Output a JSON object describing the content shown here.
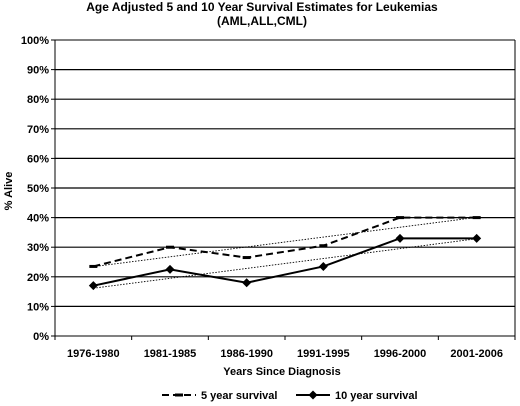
{
  "chart_data": {
    "type": "line",
    "title": "Age Adjusted 5 and 10 Year Survival Estimates  for Leukemias",
    "subtitle": "(AML,ALL,CML)",
    "xlabel": "Years Since Diagnosis",
    "ylabel": "% Alive",
    "categories": [
      "1976-1980",
      "1981-1985",
      "1986-1990",
      "1991-1995",
      "1996-2000",
      "2001-2006"
    ],
    "ylim": [
      0,
      100
    ],
    "yticks": [
      "0%",
      "10%",
      "20%",
      "30%",
      "40%",
      "50%",
      "60%",
      "70%",
      "80%",
      "90%",
      "100%"
    ],
    "grid": true,
    "trendlines": true,
    "legend_position": "bottom",
    "series": [
      {
        "name": "5 year survival",
        "values": [
          23.5,
          30,
          26.5,
          30.5,
          40,
          40
        ],
        "style": "dashed",
        "marker": "dash",
        "color": "#000000"
      },
      {
        "name": "10 year survival",
        "values": [
          17,
          22.5,
          18,
          23.5,
          33,
          33
        ],
        "style": "solid",
        "marker": "diamond",
        "color": "#000000"
      }
    ]
  }
}
